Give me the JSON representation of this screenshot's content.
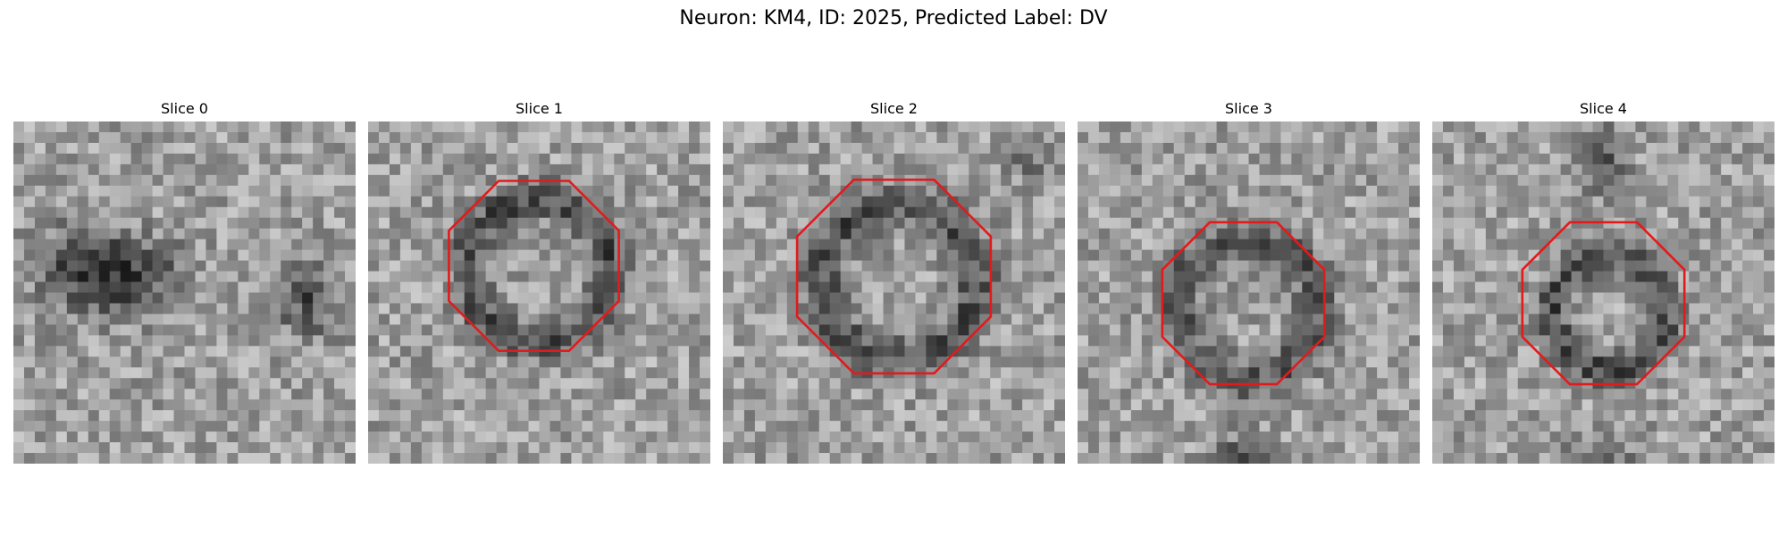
{
  "figure": {
    "title": "Neuron: KM4, ID: 2025, Predicted Label: DV"
  },
  "panels": [
    {
      "title": "Slice 0"
    },
    {
      "title": "Slice 1"
    },
    {
      "title": "Slice 2"
    },
    {
      "title": "Slice 3"
    },
    {
      "title": "Slice 4"
    }
  ],
  "colors": {
    "contour": "#e31a1c",
    "background": "#ffffff"
  }
}
